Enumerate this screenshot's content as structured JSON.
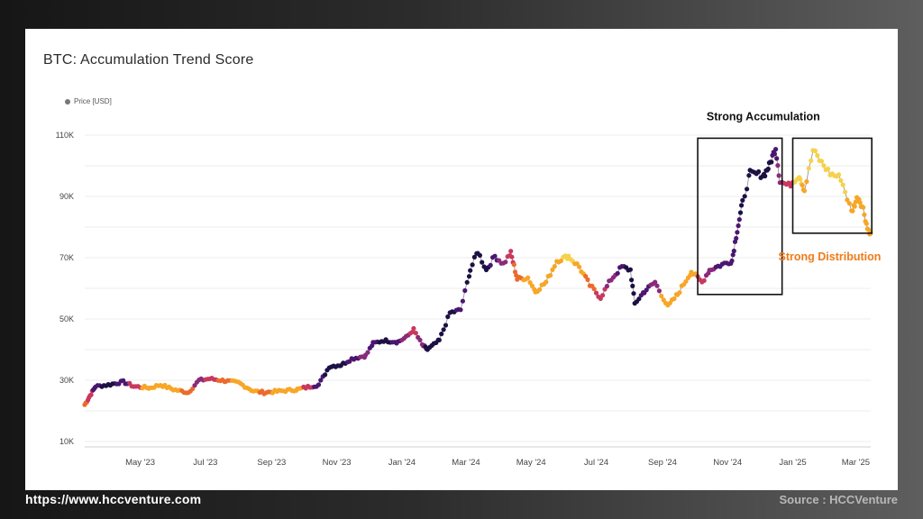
{
  "chart_data": {
    "type": "scatter",
    "title": "BTC: Accumulation Trend Score",
    "legend": [
      "Price [USD]"
    ],
    "legend_placement": "top-left",
    "y_ticks": [
      "110K",
      "90K",
      "70K",
      "50K",
      "30K",
      "10K"
    ],
    "y_tick_values": [
      110000,
      90000,
      70000,
      50000,
      30000,
      10000
    ],
    "x_ticks": [
      "May '23",
      "Jul '23",
      "Sep '23",
      "Nov '23",
      "Jan '24",
      "Mar '24",
      "May '24",
      "Jul '24",
      "Sep '24",
      "Nov '24",
      "Jan '25",
      "Mar '25"
    ],
    "x_tick_dates": [
      "2023-05-01",
      "2023-07-01",
      "2023-09-01",
      "2023-11-01",
      "2024-01-01",
      "2024-03-01",
      "2024-05-01",
      "2024-07-01",
      "2024-09-01",
      "2024-11-01",
      "2025-01-01",
      "2025-03-01"
    ],
    "xlim": [
      "2023-03-10",
      "2025-03-15"
    ],
    "ylim": [
      10000,
      110000
    ],
    "grid": true,
    "color_scale": [
      "#1c1044",
      "#4b1670",
      "#8a2a7a",
      "#c9385e",
      "#ec6a2c",
      "#f7a626",
      "#f6d24a"
    ],
    "series": [
      {
        "name": "Price [USD]",
        "points": [
          [
            "2023-03-10",
            22000,
            4
          ],
          [
            "2023-03-15",
            25000,
            3
          ],
          [
            "2023-03-20",
            28000,
            1
          ],
          [
            "2023-04-01",
            28500,
            0
          ],
          [
            "2023-04-15",
            29500,
            1
          ],
          [
            "2023-04-25",
            28000,
            3
          ],
          [
            "2023-05-10",
            27500,
            5
          ],
          [
            "2023-05-20",
            28500,
            5
          ],
          [
            "2023-06-01",
            27000,
            5
          ],
          [
            "2023-06-15",
            26000,
            4
          ],
          [
            "2023-06-25",
            30000,
            2
          ],
          [
            "2023-07-05",
            30500,
            3
          ],
          [
            "2023-07-20",
            29800,
            4
          ],
          [
            "2023-08-01",
            29200,
            5
          ],
          [
            "2023-08-15",
            26500,
            5
          ],
          [
            "2023-08-25",
            26000,
            4
          ],
          [
            "2023-09-10",
            26500,
            5
          ],
          [
            "2023-09-25",
            27000,
            5
          ],
          [
            "2023-10-05",
            27800,
            3
          ],
          [
            "2023-10-15",
            28500,
            1
          ],
          [
            "2023-10-25",
            34500,
            0
          ],
          [
            "2023-11-05",
            35000,
            0
          ],
          [
            "2023-11-15",
            37000,
            1
          ],
          [
            "2023-11-28",
            38000,
            2
          ],
          [
            "2023-12-05",
            42000,
            1
          ],
          [
            "2023-12-15",
            43000,
            0
          ],
          [
            "2023-12-28",
            42500,
            1
          ],
          [
            "2024-01-05",
            44000,
            2
          ],
          [
            "2024-01-12",
            46500,
            3
          ],
          [
            "2024-01-20",
            41500,
            2
          ],
          [
            "2024-01-25",
            40000,
            0
          ],
          [
            "2024-02-05",
            43000,
            0
          ],
          [
            "2024-02-15",
            52000,
            0
          ],
          [
            "2024-02-25",
            53000,
            1
          ],
          [
            "2024-03-05",
            66000,
            0
          ],
          [
            "2024-03-12",
            72000,
            0
          ],
          [
            "2024-03-20",
            66000,
            0
          ],
          [
            "2024-03-28",
            70500,
            1
          ],
          [
            "2024-04-05",
            68000,
            2
          ],
          [
            "2024-04-12",
            71500,
            3
          ],
          [
            "2024-04-18",
            63000,
            4
          ],
          [
            "2024-04-28",
            63500,
            5
          ],
          [
            "2024-05-05",
            59000,
            5
          ],
          [
            "2024-05-15",
            62000,
            5
          ],
          [
            "2024-05-25",
            69000,
            5
          ],
          [
            "2024-06-05",
            70500,
            6
          ],
          [
            "2024-06-15",
            67000,
            5
          ],
          [
            "2024-06-25",
            61000,
            4
          ],
          [
            "2024-07-05",
            57000,
            3
          ],
          [
            "2024-07-15",
            63000,
            2
          ],
          [
            "2024-07-25",
            67000,
            1
          ],
          [
            "2024-08-02",
            66000,
            0
          ],
          [
            "2024-08-06",
            55000,
            0
          ],
          [
            "2024-08-15",
            59000,
            1
          ],
          [
            "2024-08-25",
            62000,
            2
          ],
          [
            "2024-09-06",
            54000,
            5
          ],
          [
            "2024-09-15",
            58000,
            5
          ],
          [
            "2024-09-28",
            65500,
            5
          ],
          [
            "2024-10-08",
            62000,
            3
          ],
          [
            "2024-10-15",
            66000,
            2
          ],
          [
            "2024-10-25",
            67500,
            1
          ],
          [
            "2024-11-05",
            69000,
            1
          ],
          [
            "2024-11-10",
            79000,
            1
          ],
          [
            "2024-11-15",
            88000,
            0
          ],
          [
            "2024-11-22",
            97500,
            0
          ],
          [
            "2024-12-05",
            97000,
            0
          ],
          [
            "2024-12-10",
            100000,
            0
          ],
          [
            "2024-12-16",
            106000,
            1
          ],
          [
            "2024-12-20",
            95000,
            2
          ],
          [
            "2024-12-28",
            93500,
            3
          ],
          [
            "2025-01-07",
            97000,
            6
          ],
          [
            "2025-01-12",
            92000,
            5
          ],
          [
            "2025-01-20",
            105000,
            6
          ],
          [
            "2025-01-28",
            101000,
            6
          ],
          [
            "2025-02-05",
            97500,
            6
          ],
          [
            "2025-02-15",
            96000,
            6
          ],
          [
            "2025-02-25",
            85000,
            5
          ],
          [
            "2025-03-03",
            90000,
            5
          ],
          [
            "2025-03-08",
            86000,
            5
          ],
          [
            "2025-03-12",
            79500,
            5
          ],
          [
            "2025-03-15",
            78000,
            5
          ]
        ]
      }
    ],
    "annotations": [
      {
        "text": "Strong Accumulation",
        "color": "#111111"
      },
      {
        "text": "Strong Distribution",
        "color": "#ef7d1a"
      }
    ],
    "highlight_boxes": [
      {
        "label": "Strong Accumulation",
        "x_range": [
          "2024-10-04",
          "2024-12-22"
        ],
        "y_range": [
          58000,
          109000
        ]
      },
      {
        "label": "Strong Distribution",
        "x_range": [
          "2025-01-01",
          "2025-03-16"
        ],
        "y_range": [
          78000,
          109000
        ]
      }
    ]
  },
  "footer": {
    "url": "https://www.hccventure.com",
    "source": "Source : HCCVenture"
  }
}
